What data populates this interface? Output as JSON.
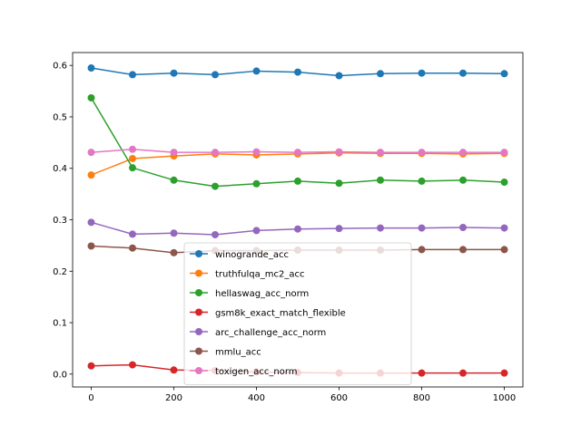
{
  "chart_data": {
    "type": "line",
    "title": "",
    "xlabel": "",
    "ylabel": "",
    "xlim": [
      -45,
      1045
    ],
    "ylim": [
      -0.025,
      0.625
    ],
    "xticks": [
      0,
      200,
      400,
      600,
      800,
      1000
    ],
    "yticks": [
      0.0,
      0.1,
      0.2,
      0.3,
      0.4,
      0.5,
      0.6
    ],
    "xtick_labels": [
      "0",
      "200",
      "400",
      "600",
      "800",
      "1000"
    ],
    "ytick_labels": [
      "0.0",
      "0.1",
      "0.2",
      "0.3",
      "0.4",
      "0.5",
      "0.6"
    ],
    "grid": false,
    "legend_position": "lower-center",
    "x": [
      0,
      100,
      200,
      300,
      400,
      500,
      600,
      700,
      800,
      900,
      1000
    ],
    "series": [
      {
        "name": "winogrande_acc",
        "color": "#1f77b4",
        "values": [
          0.595,
          0.582,
          0.585,
          0.582,
          0.589,
          0.587,
          0.58,
          0.584,
          0.585,
          0.585,
          0.584
        ]
      },
      {
        "name": "truthfulqa_mc2_acc",
        "color": "#ff7f0e",
        "values": [
          0.387,
          0.419,
          0.424,
          0.428,
          0.426,
          0.428,
          0.43,
          0.429,
          0.429,
          0.428,
          0.429
        ]
      },
      {
        "name": "hellaswag_acc_norm",
        "color": "#2ca02c",
        "values": [
          0.537,
          0.401,
          0.377,
          0.365,
          0.37,
          0.375,
          0.371,
          0.377,
          0.375,
          0.377,
          0.373
        ]
      },
      {
        "name": "gsm8k_exact_match_flexible",
        "color": "#d62728",
        "values": [
          0.016,
          0.018,
          0.008,
          0.007,
          0.004,
          0.003,
          0.002,
          0.002,
          0.002,
          0.002,
          0.002
        ]
      },
      {
        "name": "arc_challenge_acc_norm",
        "color": "#9467bd",
        "values": [
          0.295,
          0.272,
          0.274,
          0.271,
          0.279,
          0.282,
          0.283,
          0.284,
          0.284,
          0.285,
          0.284
        ]
      },
      {
        "name": "mmlu_acc",
        "color": "#8c564b",
        "values": [
          0.249,
          0.245,
          0.236,
          0.24,
          0.24,
          0.241,
          0.241,
          0.241,
          0.242,
          0.242,
          0.242
        ]
      },
      {
        "name": "toxigen_acc_norm",
        "color": "#e377c2",
        "values": [
          0.431,
          0.437,
          0.431,
          0.431,
          0.432,
          0.431,
          0.432,
          0.431,
          0.431,
          0.431,
          0.431
        ]
      }
    ]
  }
}
